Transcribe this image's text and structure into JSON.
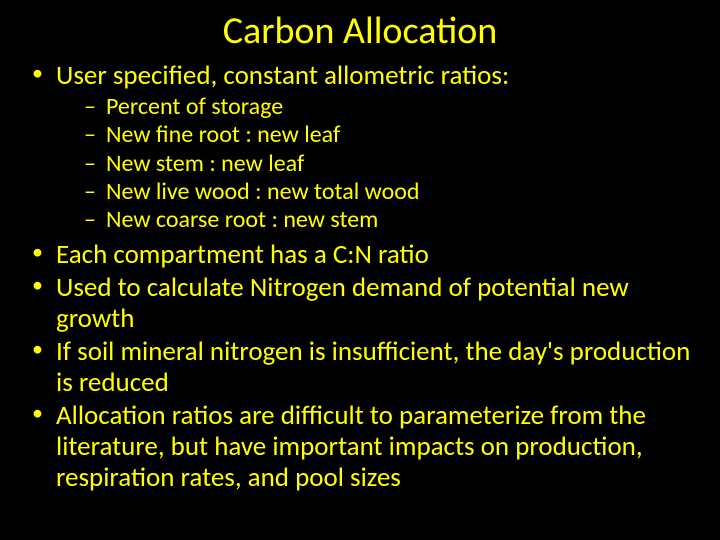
{
  "slide": {
    "title": "Carbon Allocation",
    "bullets": [
      {
        "text": "User specified, constant allometric ratios:",
        "sub": [
          "Percent of storage",
          "New fine root : new leaf",
          "New stem : new leaf",
          "New live wood :  new total wood",
          "New coarse root : new stem"
        ]
      },
      {
        "text": "Each compartment has a C:N ratio"
      },
      {
        "text": "Used to calculate Nitrogen demand of potential new growth"
      },
      {
        "text": "If soil mineral nitrogen is insufficient, the day's production is reduced"
      },
      {
        "text": "Allocation ratios are difficult to parameterize from the literature, but have important impacts on production, respiration rates, and pool sizes"
      }
    ],
    "colors": {
      "background": "#000000",
      "text": "#ffff00"
    },
    "typography": {
      "title_fontsize": 38,
      "level1_fontsize": 27,
      "level2_fontsize": 24,
      "font_family": "Calibri"
    }
  }
}
